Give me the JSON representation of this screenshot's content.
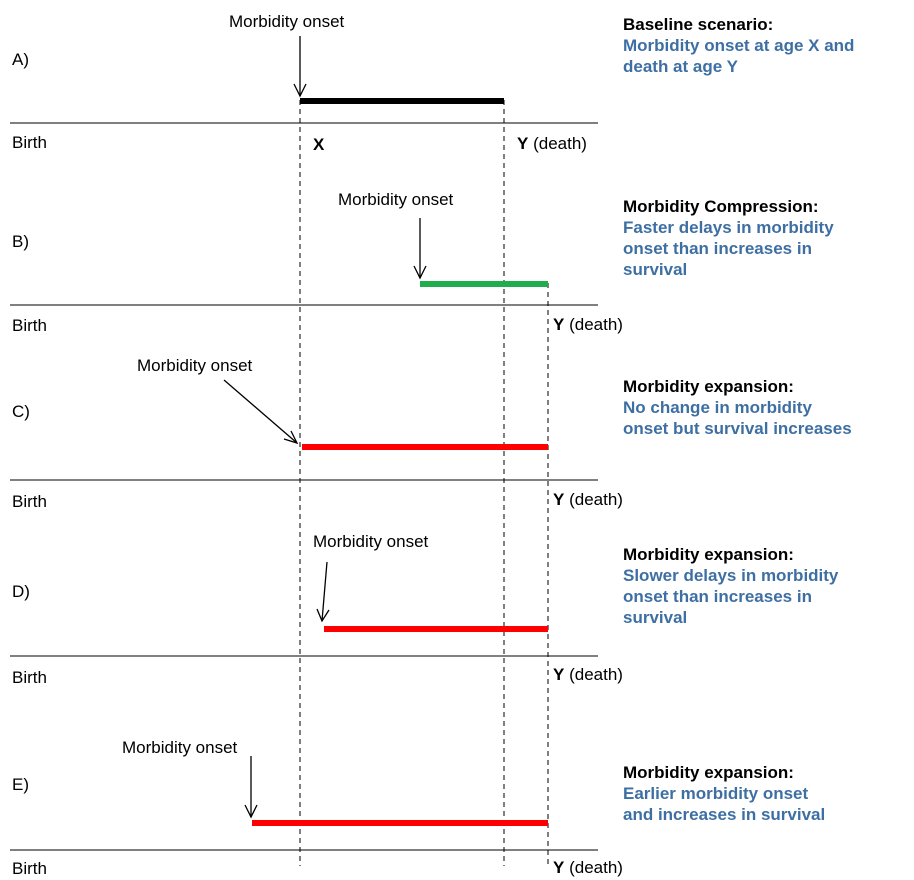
{
  "panels": [
    {
      "letter": "A)",
      "onset_label": "Morbidity onset",
      "birth_label": "Birth",
      "x_label": "X",
      "y_label": "Y",
      "death_suffix": "(death)",
      "title": "Baseline scenario:",
      "description": "Morbidity onset at age X and\ndeath at age Y",
      "bar_color": "#000000"
    },
    {
      "letter": "B)",
      "onset_label": "Morbidity onset",
      "birth_label": "Birth",
      "y_label": "Y",
      "death_suffix": "(death)",
      "title": "Morbidity Compression:",
      "description": "Faster delays in morbidity\nonset than increases in\nsurvival",
      "bar_color": "#1fad4e"
    },
    {
      "letter": "C)",
      "onset_label": "Morbidity onset",
      "birth_label": "Birth",
      "y_label": "Y",
      "death_suffix": "(death)",
      "title": "Morbidity expansion:",
      "description": "No change in morbidity\nonset but survival increases",
      "bar_color": "#ff0000"
    },
    {
      "letter": "D)",
      "onset_label": "Morbidity onset",
      "birth_label": "Birth",
      "y_label": "Y",
      "death_suffix": "(death)",
      "title": "Morbidity expansion:",
      "description": "Slower delays in morbidity\nonset than increases in\nsurvival",
      "bar_color": "#ff0000"
    },
    {
      "letter": "E)",
      "onset_label": "Morbidity onset",
      "birth_label": "Birth",
      "y_label": "Y",
      "death_suffix": "(death)",
      "title": "Morbidity expansion:",
      "description": "Earlier morbidity onset\nand increases in survival",
      "bar_color": "#ff0000"
    }
  ],
  "colors": {
    "description_text": "#3e6fa3",
    "lines": "#000000"
  }
}
